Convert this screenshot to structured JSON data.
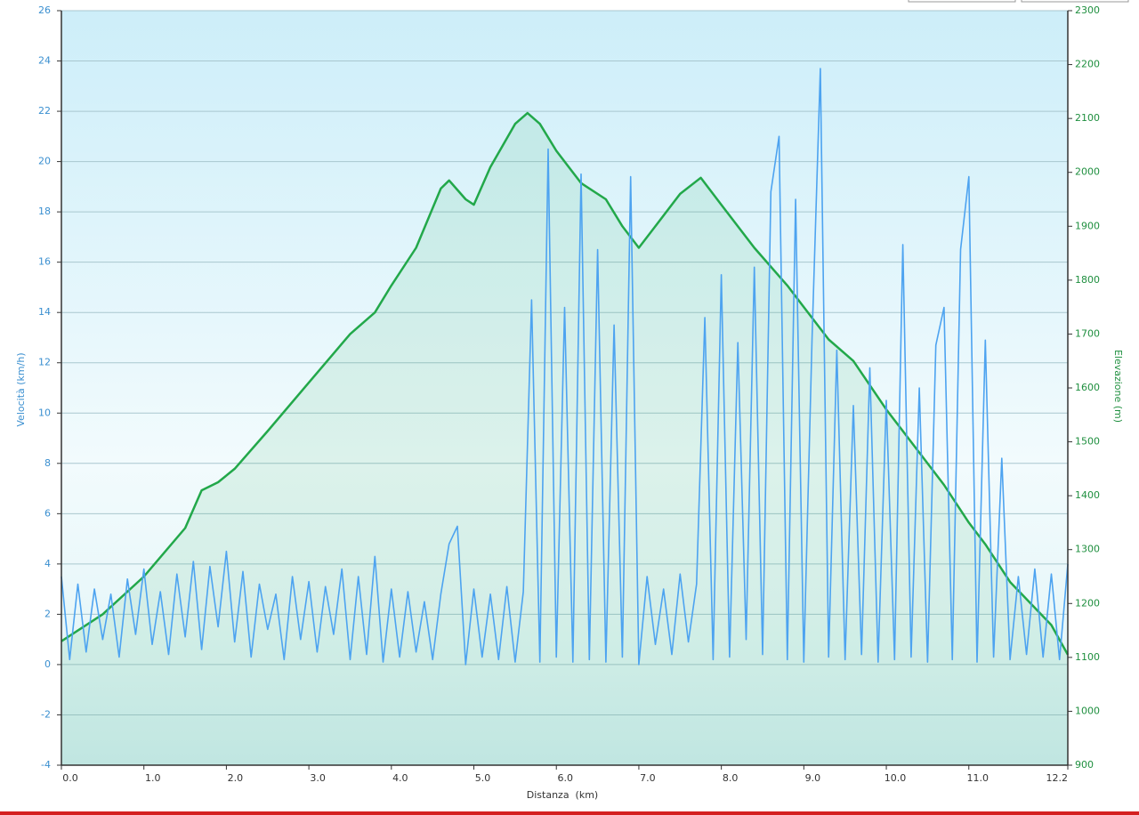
{
  "chart_data": {
    "type": "line",
    "xlabel": "Distanza  (km)",
    "ylabel": "Velocità (km/h)",
    "y2label": "Elevazione (m)",
    "xlim": [
      0,
      12.2
    ],
    "xticks": [
      {
        "value": 0,
        "label": "0.0"
      },
      {
        "value": 1,
        "label": "1.0"
      },
      {
        "value": 2,
        "label": "2.0"
      },
      {
        "value": 3,
        "label": "3.0"
      },
      {
        "value": 4,
        "label": "4.0"
      },
      {
        "value": 5,
        "label": "5.0"
      },
      {
        "value": 6,
        "label": "6.0"
      },
      {
        "value": 7,
        "label": "7.0"
      },
      {
        "value": 8,
        "label": "8.0"
      },
      {
        "value": 9,
        "label": "9.0"
      },
      {
        "value": 10,
        "label": "10.0"
      },
      {
        "value": 11,
        "label": "11.0"
      },
      12.2
    ],
    "ylim": [
      -4,
      26
    ],
    "yticks": [
      -4,
      -2,
      0,
      2,
      4,
      6,
      8,
      10,
      12,
      14,
      16,
      18,
      20,
      22,
      24,
      26
    ],
    "y2lim": [
      900,
      2300
    ],
    "y2ticks": [
      900,
      1000,
      1100,
      1200,
      1300,
      1400,
      1500,
      1600,
      1700,
      1800,
      1900,
      2000,
      2100,
      2200,
      2300
    ],
    "grid": true,
    "series": [
      {
        "name": "Elevazione",
        "color": "#22a84a",
        "axis": "y2",
        "fill": true,
        "x": [
          0,
          0.5,
          1.0,
          1.5,
          1.7,
          1.9,
          2.1,
          2.5,
          3.0,
          3.5,
          3.8,
          4.0,
          4.3,
          4.6,
          4.7,
          4.9,
          5.0,
          5.2,
          5.5,
          5.65,
          5.8,
          6.0,
          6.3,
          6.6,
          6.8,
          7.0,
          7.2,
          7.5,
          7.75,
          8.0,
          8.4,
          8.8,
          9.0,
          9.3,
          9.6,
          10.0,
          10.3,
          10.7,
          11.0,
          11.2,
          11.5,
          12.0,
          12.2
        ],
        "values": [
          1130,
          1180,
          1250,
          1340,
          1410,
          1425,
          1450,
          1520,
          1610,
          1700,
          1740,
          1790,
          1860,
          1970,
          1985,
          1950,
          1940,
          2010,
          2090,
          2110,
          2090,
          2040,
          1980,
          1950,
          1900,
          1860,
          1900,
          1960,
          1990,
          1940,
          1860,
          1790,
          1750,
          1690,
          1650,
          1560,
          1500,
          1420,
          1350,
          1310,
          1240,
          1160,
          1105
        ]
      },
      {
        "name": "Velocità",
        "color": "#4da3f0",
        "axis": "y",
        "x": [
          0.0,
          0.1,
          0.2,
          0.3,
          0.4,
          0.5,
          0.6,
          0.7,
          0.8,
          0.9,
          1.0,
          1.1,
          1.2,
          1.3,
          1.4,
          1.5,
          1.6,
          1.7,
          1.8,
          1.9,
          2.0,
          2.1,
          2.2,
          2.3,
          2.4,
          2.5,
          2.6,
          2.7,
          2.8,
          2.9,
          3.0,
          3.1,
          3.2,
          3.3,
          3.4,
          3.5,
          3.6,
          3.7,
          3.8,
          3.9,
          4.0,
          4.1,
          4.2,
          4.3,
          4.4,
          4.5,
          4.6,
          4.7,
          4.8,
          4.9,
          5.0,
          5.1,
          5.2,
          5.3,
          5.4,
          5.5,
          5.6,
          5.7,
          5.8,
          5.9,
          6.0,
          6.1,
          6.2,
          6.3,
          6.4,
          6.5,
          6.6,
          6.7,
          6.8,
          6.9,
          7.0,
          7.1,
          7.2,
          7.3,
          7.4,
          7.5,
          7.6,
          7.7,
          7.8,
          7.9,
          8.0,
          8.1,
          8.2,
          8.3,
          8.4,
          8.5,
          8.6,
          8.7,
          8.8,
          8.9,
          9.0,
          9.1,
          9.2,
          9.3,
          9.4,
          9.5,
          9.6,
          9.7,
          9.8,
          9.9,
          10.0,
          10.1,
          10.2,
          10.3,
          10.4,
          10.5,
          10.6,
          10.7,
          10.8,
          10.9,
          11.0,
          11.1,
          11.2,
          11.3,
          11.4,
          11.5,
          11.6,
          11.7,
          11.8,
          11.9,
          12.0,
          12.1,
          12.2
        ],
        "values": [
          3.5,
          0.2,
          3.2,
          0.5,
          3.0,
          1.0,
          2.8,
          0.3,
          3.4,
          1.2,
          3.8,
          0.8,
          2.9,
          0.4,
          3.6,
          1.1,
          4.1,
          0.6,
          3.9,
          1.5,
          4.5,
          0.9,
          3.7,
          0.3,
          3.2,
          1.4,
          2.8,
          0.2,
          3.5,
          1.0,
          3.3,
          0.5,
          3.1,
          1.2,
          3.8,
          0.2,
          3.5,
          0.4,
          4.3,
          0.1,
          3.0,
          0.3,
          2.9,
          0.5,
          2.5,
          0.2,
          2.8,
          4.8,
          5.5,
          0.0,
          3.0,
          0.3,
          2.8,
          0.2,
          3.1,
          0.1,
          2.9,
          14.5,
          0.1,
          20.5,
          0.3,
          14.2,
          0.1,
          19.5,
          0.2,
          16.5,
          0.1,
          13.5,
          0.3,
          19.4,
          0.0,
          3.5,
          0.8,
          3.0,
          0.4,
          3.6,
          0.9,
          3.2,
          13.8,
          0.2,
          15.5,
          0.3,
          12.8,
          1.0,
          15.8,
          0.4,
          18.8,
          21.0,
          0.2,
          18.5,
          0.1,
          13.0,
          23.7,
          0.3,
          12.5,
          0.2,
          10.3,
          0.4,
          11.8,
          0.1,
          10.5,
          0.2,
          16.7,
          0.3,
          11.0,
          0.1,
          12.7,
          14.2,
          0.2,
          16.5,
          19.4,
          0.1,
          12.9,
          0.3,
          8.2,
          0.2,
          3.5,
          0.4,
          3.8,
          0.3,
          3.6,
          0.2,
          4.0
        ]
      }
    ]
  }
}
